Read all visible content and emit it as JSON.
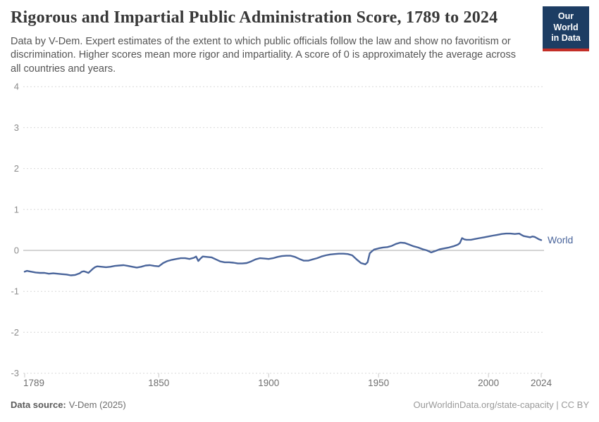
{
  "header": {
    "title": "Rigorous and Impartial Public Administration Score, 1789 to 2024",
    "subtitle": "Data by V-Dem. Expert estimates of the extent to which public officials follow the law and show no favoritism or discrimination. Higher scores mean more rigor and impartiality. A score of 0 is approximately the average across all countries and years."
  },
  "logo": {
    "line1": "Our World",
    "line2": "in Data",
    "bg_color": "#1d3d63",
    "stripe_color": "#c32e27"
  },
  "footer": {
    "source_label": "Data source:",
    "source_value": "V-Dem (2025)",
    "credit": "OurWorldinData.org/state-capacity | CC BY"
  },
  "chart_data": {
    "type": "line",
    "title": "Rigorous and Impartial Public Administration Score, 1789 to 2024",
    "xlabel": "",
    "ylabel": "",
    "x_range": [
      1789,
      2024
    ],
    "ylim": [
      -3,
      4
    ],
    "y_ticks": [
      4,
      3,
      2,
      1,
      0,
      -1,
      -2,
      -3
    ],
    "x_ticks": [
      1789,
      1850,
      1900,
      1950,
      2000,
      2024
    ],
    "grid": "horizontal dashed, solid line at 0",
    "legend_position": "label at right end of line",
    "colors": {
      "line": "#4a659b",
      "grid": "#d9d9d9",
      "zero_line": "#a8a8a8",
      "y_tick_text": "#8c8c8c",
      "x_tick_text": "#6f6f6f"
    },
    "series": [
      {
        "name": "World",
        "color": "#4a659b",
        "points": [
          [
            1789,
            -0.52
          ],
          [
            1790,
            -0.5
          ],
          [
            1792,
            -0.52
          ],
          [
            1794,
            -0.54
          ],
          [
            1796,
            -0.55
          ],
          [
            1798,
            -0.55
          ],
          [
            1800,
            -0.57
          ],
          [
            1802,
            -0.56
          ],
          [
            1804,
            -0.57
          ],
          [
            1806,
            -0.58
          ],
          [
            1808,
            -0.59
          ],
          [
            1810,
            -0.61
          ],
          [
            1812,
            -0.6
          ],
          [
            1814,
            -0.56
          ],
          [
            1815,
            -0.52
          ],
          [
            1816,
            -0.51
          ],
          [
            1817,
            -0.53
          ],
          [
            1818,
            -0.55
          ],
          [
            1819,
            -0.5
          ],
          [
            1820,
            -0.45
          ],
          [
            1821,
            -0.41
          ],
          [
            1822,
            -0.39
          ],
          [
            1824,
            -0.4
          ],
          [
            1826,
            -0.41
          ],
          [
            1828,
            -0.4
          ],
          [
            1830,
            -0.38
          ],
          [
            1832,
            -0.37
          ],
          [
            1834,
            -0.36
          ],
          [
            1836,
            -0.38
          ],
          [
            1838,
            -0.4
          ],
          [
            1840,
            -0.42
          ],
          [
            1842,
            -0.4
          ],
          [
            1844,
            -0.37
          ],
          [
            1846,
            -0.36
          ],
          [
            1848,
            -0.38
          ],
          [
            1850,
            -0.39
          ],
          [
            1852,
            -0.31
          ],
          [
            1854,
            -0.26
          ],
          [
            1856,
            -0.23
          ],
          [
            1858,
            -0.21
          ],
          [
            1860,
            -0.19
          ],
          [
            1862,
            -0.19
          ],
          [
            1864,
            -0.21
          ],
          [
            1866,
            -0.18
          ],
          [
            1867,
            -0.15
          ],
          [
            1868,
            -0.26
          ],
          [
            1869,
            -0.2
          ],
          [
            1870,
            -0.15
          ],
          [
            1872,
            -0.16
          ],
          [
            1874,
            -0.17
          ],
          [
            1876,
            -0.22
          ],
          [
            1878,
            -0.27
          ],
          [
            1880,
            -0.29
          ],
          [
            1882,
            -0.29
          ],
          [
            1884,
            -0.3
          ],
          [
            1886,
            -0.32
          ],
          [
            1888,
            -0.32
          ],
          [
            1890,
            -0.31
          ],
          [
            1892,
            -0.27
          ],
          [
            1894,
            -0.22
          ],
          [
            1896,
            -0.19
          ],
          [
            1898,
            -0.2
          ],
          [
            1900,
            -0.21
          ],
          [
            1902,
            -0.19
          ],
          [
            1904,
            -0.16
          ],
          [
            1906,
            -0.14
          ],
          [
            1908,
            -0.13
          ],
          [
            1910,
            -0.13
          ],
          [
            1912,
            -0.16
          ],
          [
            1914,
            -0.21
          ],
          [
            1916,
            -0.25
          ],
          [
            1918,
            -0.25
          ],
          [
            1920,
            -0.22
          ],
          [
            1922,
            -0.19
          ],
          [
            1924,
            -0.15
          ],
          [
            1926,
            -0.12
          ],
          [
            1928,
            -0.1
          ],
          [
            1930,
            -0.09
          ],
          [
            1932,
            -0.08
          ],
          [
            1934,
            -0.08
          ],
          [
            1936,
            -0.09
          ],
          [
            1938,
            -0.12
          ],
          [
            1940,
            -0.22
          ],
          [
            1942,
            -0.31
          ],
          [
            1944,
            -0.34
          ],
          [
            1945,
            -0.29
          ],
          [
            1946,
            -0.07
          ],
          [
            1947,
            -0.02
          ],
          [
            1948,
            0.02
          ],
          [
            1950,
            0.05
          ],
          [
            1952,
            0.07
          ],
          [
            1954,
            0.08
          ],
          [
            1956,
            0.11
          ],
          [
            1958,
            0.16
          ],
          [
            1960,
            0.19
          ],
          [
            1962,
            0.18
          ],
          [
            1964,
            0.14
          ],
          [
            1966,
            0.1
          ],
          [
            1968,
            0.07
          ],
          [
            1970,
            0.03
          ],
          [
            1972,
            0.0
          ],
          [
            1974,
            -0.05
          ],
          [
            1976,
            -0.01
          ],
          [
            1978,
            0.03
          ],
          [
            1980,
            0.05
          ],
          [
            1982,
            0.07
          ],
          [
            1984,
            0.1
          ],
          [
            1986,
            0.14
          ],
          [
            1987,
            0.18
          ],
          [
            1988,
            0.3
          ],
          [
            1989,
            0.27
          ],
          [
            1990,
            0.26
          ],
          [
            1992,
            0.26
          ],
          [
            1994,
            0.28
          ],
          [
            1996,
            0.3
          ],
          [
            1998,
            0.32
          ],
          [
            2000,
            0.34
          ],
          [
            2002,
            0.36
          ],
          [
            2004,
            0.38
          ],
          [
            2006,
            0.4
          ],
          [
            2008,
            0.41
          ],
          [
            2010,
            0.41
          ],
          [
            2012,
            0.4
          ],
          [
            2014,
            0.41
          ],
          [
            2015,
            0.38
          ],
          [
            2016,
            0.35
          ],
          [
            2017,
            0.34
          ],
          [
            2018,
            0.33
          ],
          [
            2019,
            0.32
          ],
          [
            2020,
            0.34
          ],
          [
            2021,
            0.33
          ],
          [
            2022,
            0.3
          ],
          [
            2023,
            0.27
          ],
          [
            2024,
            0.25
          ]
        ]
      }
    ]
  }
}
